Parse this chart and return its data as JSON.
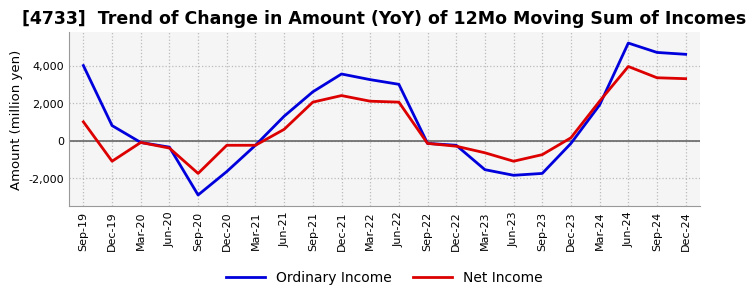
{
  "title": "[4733]  Trend of Change in Amount (YoY) of 12Mo Moving Sum of Incomes",
  "ylabel": "Amount (million yen)",
  "background_color": "#ffffff",
  "plot_bg_color": "#f5f5f5",
  "grid_color": "#bbbbbb",
  "zero_line_color": "#666666",
  "x_labels": [
    "Sep-19",
    "Dec-19",
    "Mar-20",
    "Jun-20",
    "Sep-20",
    "Dec-20",
    "Mar-21",
    "Jun-21",
    "Sep-21",
    "Dec-21",
    "Mar-22",
    "Jun-22",
    "Sep-22",
    "Dec-22",
    "Mar-23",
    "Jun-23",
    "Sep-23",
    "Dec-23",
    "Mar-24",
    "Jun-24",
    "Sep-24",
    "Dec-24"
  ],
  "ordinary_income": [
    4000,
    800,
    -100,
    -350,
    -2900,
    -1650,
    -250,
    1300,
    2600,
    3550,
    3250,
    3000,
    -150,
    -250,
    -1550,
    -1850,
    -1750,
    -150,
    1900,
    5200,
    4700,
    4600
  ],
  "net_income": [
    1000,
    -1100,
    -100,
    -400,
    -1750,
    -250,
    -250,
    600,
    2050,
    2400,
    2100,
    2050,
    -150,
    -300,
    -650,
    -1100,
    -750,
    150,
    2100,
    3950,
    3350,
    3300
  ],
  "ordinary_income_color": "#0000dd",
  "net_income_color": "#dd0000",
  "line_width": 2.0,
  "ylim": [
    -3500,
    5800
  ],
  "yticks": [
    -2000,
    0,
    2000,
    4000
  ],
  "legend_ordinary": "Ordinary Income",
  "legend_net": "Net Income",
  "title_fontsize": 12.5,
  "axis_fontsize": 9.5,
  "tick_fontsize": 8.0,
  "legend_fontsize": 10
}
